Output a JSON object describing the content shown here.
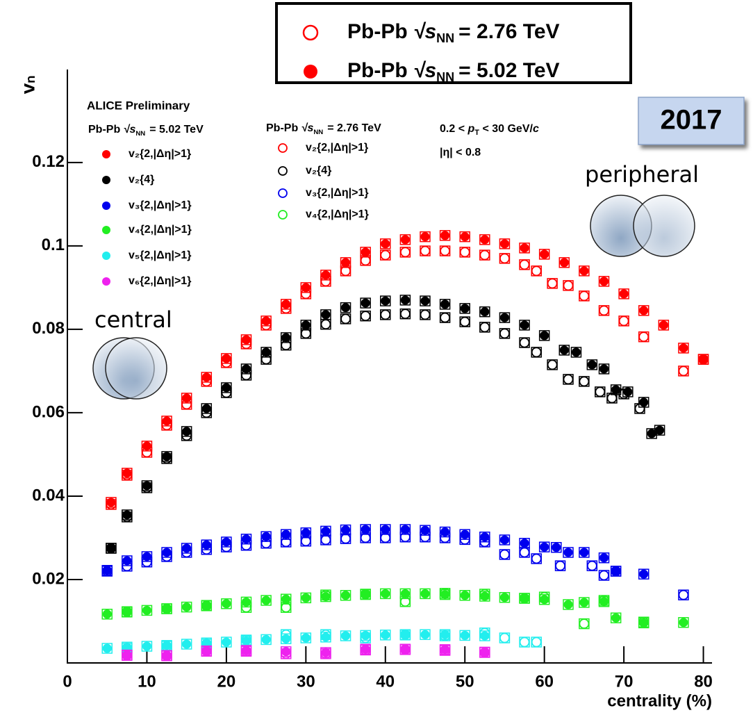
{
  "chart_data": {
    "type": "scatter",
    "x_label": "centrality (%)",
    "y_label": "vₙ",
    "xlim": [
      0,
      81
    ],
    "ylim": [
      0,
      0.1423
    ],
    "xticks": [
      0,
      10,
      20,
      30,
      40,
      50,
      60,
      70,
      80
    ],
    "yticks": [
      0.02,
      0.04,
      0.06,
      0.08,
      0.1,
      0.12
    ],
    "experiment": "ALICE Preliminary",
    "year": "2017",
    "central": "central",
    "peripheral": "peripheral",
    "energies": [
      {
        "system": "Pb-Pb",
        "sqrt_s": "√s",
        "sub": "NN",
        "value": "= 2.76 TeV",
        "marker": "open",
        "color": "#ff0000"
      },
      {
        "system": "Pb-Pb",
        "sqrt_s": "√s",
        "sub": "NN",
        "value": "= 5.02 TeV",
        "marker": "filled",
        "color": "#ff0000"
      }
    ],
    "kinematics": {
      "lo": "0.2 <",
      "p": "p",
      "sub": "T",
      "hi": "< 30 GeV/",
      "c": "c"
    },
    "eta_cut": "|η| < 0.8",
    "series": [
      {
        "name": "v₂{2,|Δη|>1}",
        "color": "#ff0000",
        "marker": "filled",
        "x": [
          5.5,
          7.5,
          10,
          12.5,
          15,
          17.5,
          20,
          22.5,
          25,
          27.5,
          30,
          32.5,
          35,
          37.5,
          40,
          42.5,
          45,
          47.5,
          50,
          52.5,
          55,
          57.5,
          60,
          62.5,
          65,
          67.5,
          70,
          72.5,
          75,
          77.5,
          80
        ],
        "values": [
          0.0385,
          0.0455,
          0.052,
          0.058,
          0.0635,
          0.0685,
          0.073,
          0.0775,
          0.082,
          0.086,
          0.09,
          0.093,
          0.096,
          0.0985,
          0.1005,
          0.1015,
          0.1022,
          0.1025,
          0.1022,
          0.1015,
          0.1005,
          0.0995,
          0.098,
          0.096,
          0.094,
          0.0915,
          0.0885,
          0.0845,
          0.081,
          0.0755,
          0.0728
        ]
      },
      {
        "name": "v₂{2,|Δη|>1}",
        "color": "#ff0000",
        "marker": "open",
        "x": [
          5.5,
          7.5,
          10,
          12.5,
          15,
          17.5,
          20,
          22.5,
          25,
          27.5,
          30,
          32.5,
          35,
          37.5,
          40,
          42.5,
          45,
          47.5,
          50,
          52.5,
          55,
          57.5,
          59,
          61,
          63,
          65,
          67.5,
          70,
          72.5,
          77.5,
          80
        ],
        "values": [
          0.038,
          0.045,
          0.0505,
          0.057,
          0.062,
          0.0675,
          0.072,
          0.0765,
          0.081,
          0.085,
          0.0885,
          0.0915,
          0.094,
          0.0965,
          0.0978,
          0.0985,
          0.0988,
          0.0988,
          0.0985,
          0.0978,
          0.097,
          0.0955,
          0.094,
          0.091,
          0.0905,
          0.088,
          0.0845,
          0.082,
          0.0782,
          0.07,
          0.0728
        ]
      },
      {
        "name": "v₂{4}",
        "color": "#000000",
        "marker": "filled",
        "x": [
          5.5,
          7.5,
          10,
          12.5,
          15,
          17.5,
          20,
          22.5,
          25,
          27.5,
          30,
          32.5,
          35,
          37.5,
          40,
          42.5,
          45,
          47.5,
          50,
          52.5,
          55,
          57.5,
          60,
          62.5,
          64,
          66,
          67.5,
          69,
          70.5,
          72.5,
          73.5,
          74.5
        ],
        "values": [
          0.0275,
          0.0355,
          0.0425,
          0.0495,
          0.0555,
          0.061,
          0.066,
          0.0705,
          0.0745,
          0.078,
          0.081,
          0.0835,
          0.0852,
          0.0863,
          0.0868,
          0.087,
          0.0868,
          0.086,
          0.085,
          0.0842,
          0.0828,
          0.081,
          0.0785,
          0.075,
          0.0745,
          0.0715,
          0.0705,
          0.0655,
          0.065,
          0.0625,
          0.055,
          0.0558
        ]
      },
      {
        "name": "v₂{4}",
        "color": "#000000",
        "marker": "open",
        "x": [
          5.5,
          7.5,
          10,
          12.5,
          15,
          17.5,
          20,
          22.5,
          25,
          27.5,
          30,
          32.5,
          35,
          37.5,
          40,
          42.5,
          45,
          47.5,
          50,
          52.5,
          55,
          57.5,
          59,
          61,
          63,
          65,
          67,
          68.5,
          70,
          72
        ],
        "values": [
          0.0275,
          0.035,
          0.042,
          0.049,
          0.0545,
          0.06,
          0.0648,
          0.069,
          0.0728,
          0.0762,
          0.079,
          0.0812,
          0.0825,
          0.0832,
          0.0835,
          0.0837,
          0.0835,
          0.0828,
          0.0818,
          0.0805,
          0.079,
          0.0768,
          0.0745,
          0.0715,
          0.068,
          0.0675,
          0.065,
          0.0635,
          0.0645,
          0.061
        ]
      },
      {
        "name": "v₃{2,|Δη|>1}",
        "color": "#0000ee",
        "marker": "filled",
        "x": [
          5,
          7.5,
          10,
          12.5,
          15,
          17.5,
          20,
          22.5,
          25,
          27.5,
          30,
          32.5,
          35,
          37.5,
          40,
          42.5,
          45,
          47.5,
          50,
          52.5,
          55,
          57.5,
          60,
          61.5,
          63,
          65,
          67.5,
          69,
          72.5
        ],
        "values": [
          0.0222,
          0.0245,
          0.0255,
          0.0265,
          0.0275,
          0.0283,
          0.029,
          0.0297,
          0.0303,
          0.0308,
          0.0312,
          0.0316,
          0.0319,
          0.032,
          0.032,
          0.032,
          0.0318,
          0.0314,
          0.0308,
          0.0302,
          0.0295,
          0.0287,
          0.0278,
          0.0277,
          0.0265,
          0.0265,
          0.0252,
          0.022,
          0.0213
        ]
      },
      {
        "name": "v₃{2,|Δη|>1}",
        "color": "#0000ee",
        "marker": "open",
        "x": [
          5,
          7.5,
          10,
          12.5,
          15,
          17.5,
          20,
          22.5,
          25,
          27.5,
          30,
          32.5,
          35,
          37.5,
          40,
          42.5,
          45,
          47.5,
          50,
          52.5,
          55,
          57.5,
          59,
          62,
          66,
          67.5,
          69,
          77.5
        ],
        "values": [
          0.022,
          0.0232,
          0.0242,
          0.0255,
          0.0265,
          0.0272,
          0.0278,
          0.0282,
          0.0287,
          0.029,
          0.0292,
          0.0295,
          0.0298,
          0.03,
          0.03,
          0.0302,
          0.0302,
          0.03,
          0.0296,
          0.029,
          0.026,
          0.0265,
          0.025,
          0.0233,
          0.0233,
          0.021,
          0.022,
          0.0163
        ]
      },
      {
        "name": "v₄{2,|Δη|>1}",
        "color": "#22ee22",
        "marker": "filled",
        "x": [
          5,
          7.5,
          10,
          12.5,
          15,
          17.5,
          20,
          22.5,
          25,
          27.5,
          30,
          32.5,
          35,
          37.5,
          40,
          42.5,
          45,
          47.5,
          50,
          52.5,
          55,
          57.5,
          60,
          63,
          65,
          67.5,
          69,
          72.5,
          77.5
        ],
        "values": [
          0.0117,
          0.0122,
          0.0126,
          0.013,
          0.0134,
          0.0138,
          0.0142,
          0.0146,
          0.015,
          0.0153,
          0.0156,
          0.0159,
          0.0162,
          0.0164,
          0.0166,
          0.0166,
          0.0166,
          0.0164,
          0.0162,
          0.016,
          0.0157,
          0.0155,
          0.0152,
          0.014,
          0.0145,
          0.0147,
          0.0108,
          0.0096,
          0.0097
        ]
      },
      {
        "name": "v₄{2,|Δη|>1}",
        "color": "#22ee22",
        "marker": "open",
        "x": [
          7.5,
          12.5,
          17.5,
          22.5,
          27.5,
          32.5,
          37.5,
          42.5,
          47.5,
          52.5,
          57.5,
          60,
          65,
          67.5,
          72.5
        ],
        "values": [
          0.0123,
          0.013,
          0.0137,
          0.0133,
          0.0133,
          0.0163,
          0.0165,
          0.0147,
          0.0167,
          0.0165,
          0.0155,
          0.0158,
          0.0094,
          0.015,
          0.0098
        ]
      },
      {
        "name": "v₅{2,|Δη|>1}",
        "color": "#22eeee",
        "marker": "filled",
        "x": [
          5,
          7.5,
          10,
          12.5,
          15,
          17.5,
          20,
          22.5,
          25,
          27.5,
          30,
          32.5,
          35,
          37.5,
          40,
          42.5,
          45,
          47.5,
          50,
          52.5
        ],
        "values": [
          0.0035,
          0.0038,
          0.004,
          0.0042,
          0.0045,
          0.0048,
          0.005,
          0.0053,
          0.0056,
          0.0058,
          0.006,
          0.0062,
          0.0065,
          0.0066,
          0.0067,
          0.0067,
          0.0068,
          0.0068,
          0.0066,
          0.0065
        ]
      },
      {
        "color": "#22eeee",
        "marker": "open",
        "x": [
          7.5,
          12.5,
          17.5,
          22.5,
          27.5,
          32.5,
          37.5,
          42.5,
          47.5,
          52.5,
          55,
          57.5,
          59
        ],
        "values": [
          0.0035,
          0.004,
          0.0045,
          0.0055,
          0.0068,
          0.0068,
          0.006,
          0.0068,
          0.0065,
          0.0072,
          0.006,
          0.005,
          0.005
        ]
      },
      {
        "name": "v₆{2,|Δη|>1}",
        "color": "#ee22ee",
        "marker": "filled",
        "x": [
          7.5,
          12.5,
          17.5,
          22.5,
          27.5,
          32.5,
          37.5,
          42.5,
          47.5,
          52.5
        ],
        "values": [
          0.0019,
          0.0018,
          0.0029,
          0.003,
          0.0027,
          0.0025,
          0.0033,
          0.0033,
          0.0032,
          0.0026
        ]
      },
      {
        "color": "#ee22ee",
        "marker": "open",
        "x": [
          7.5,
          12.5,
          17.5,
          22.5,
          27.5,
          32.5,
          37.5,
          42.5,
          47.5,
          52.5
        ],
        "values": [
          0.0018,
          0.0017,
          0.0028,
          0.0028,
          0.0022,
          0.0022,
          0.0031,
          0.0032,
          0.003,
          0.0025
        ]
      }
    ]
  }
}
